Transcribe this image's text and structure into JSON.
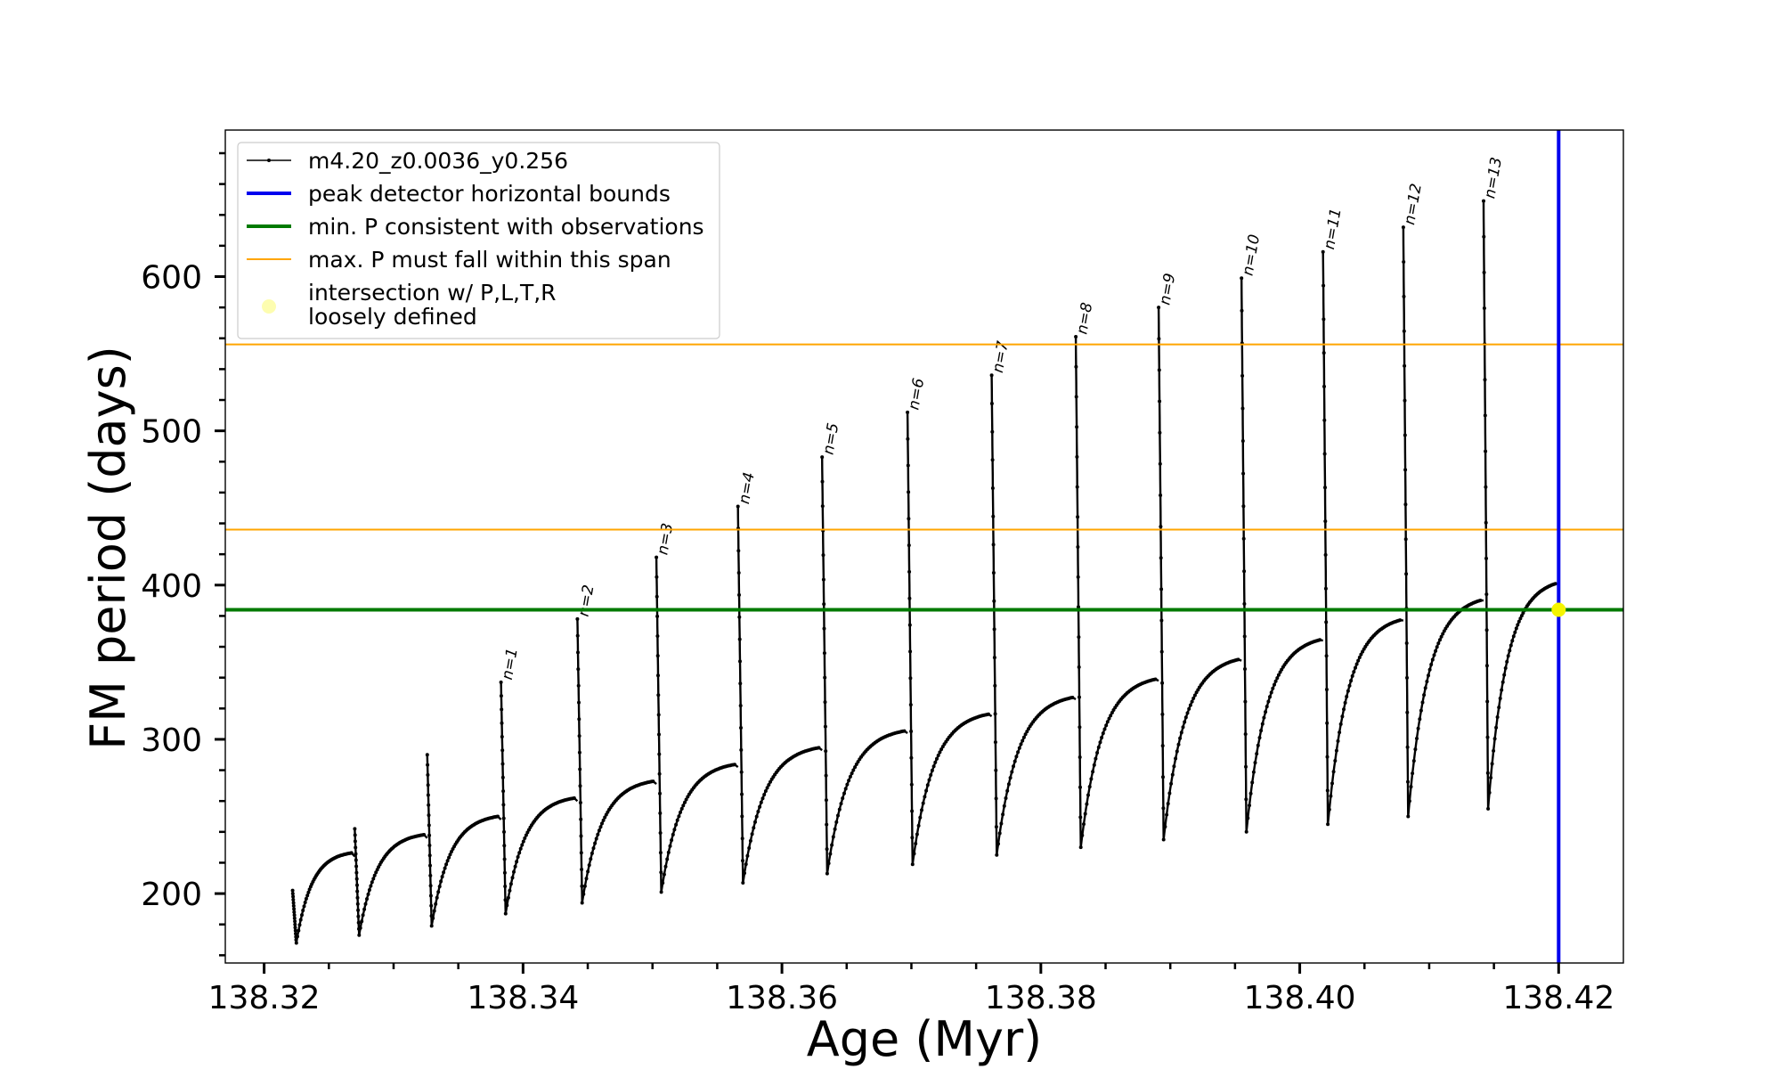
{
  "chart_data": {
    "type": "line",
    "xlabel": "Age (Myr)",
    "ylabel": "FM period (days)",
    "xlim": [
      138.317,
      138.425
    ],
    "ylim": [
      155,
      695
    ],
    "xticks_major": [
      "138.32",
      "138.34",
      "138.36",
      "138.38",
      "138.40",
      "138.42"
    ],
    "yticks_major": [
      "200",
      "300",
      "400",
      "500",
      "600"
    ],
    "series_name": "m4.20_z0.0036_y0.256",
    "cycles": [
      {
        "x0": 138.3222,
        "x_end": 138.327,
        "p_start": 202,
        "p_min": 168,
        "p_plateau": 228,
        "label": ""
      },
      {
        "x0": 138.327,
        "x_end": 138.3326,
        "p_start": 242,
        "p_min": 173,
        "p_plateau": 240,
        "label": ""
      },
      {
        "x0": 138.3326,
        "x_end": 138.3383,
        "p_start": 290,
        "p_min": 179,
        "p_plateau": 252,
        "label": ""
      },
      {
        "x0": 138.3383,
        "x_end": 138.3442,
        "p_start": 337,
        "p_min": 187,
        "p_plateau": 264,
        "label": "n=1"
      },
      {
        "x0": 138.3442,
        "x_end": 138.3503,
        "p_start": 378,
        "p_min": 194,
        "p_plateau": 275,
        "label": "n=2"
      },
      {
        "x0": 138.3503,
        "x_end": 138.3566,
        "p_start": 418,
        "p_min": 201,
        "p_plateau": 286,
        "label": "n=3"
      },
      {
        "x0": 138.3566,
        "x_end": 138.3631,
        "p_start": 451,
        "p_min": 207,
        "p_plateau": 297,
        "label": "n=4"
      },
      {
        "x0": 138.3631,
        "x_end": 138.3697,
        "p_start": 483,
        "p_min": 213,
        "p_plateau": 308,
        "label": "n=5"
      },
      {
        "x0": 138.3697,
        "x_end": 138.3762,
        "p_start": 512,
        "p_min": 219,
        "p_plateau": 319,
        "label": "n=6"
      },
      {
        "x0": 138.3762,
        "x_end": 138.3827,
        "p_start": 536,
        "p_min": 225,
        "p_plateau": 330,
        "label": "n=7"
      },
      {
        "x0": 138.3827,
        "x_end": 138.3891,
        "p_start": 561,
        "p_min": 230,
        "p_plateau": 342,
        "label": "n=8"
      },
      {
        "x0": 138.3891,
        "x_end": 138.3955,
        "p_start": 580,
        "p_min": 235,
        "p_plateau": 355,
        "label": "n=9"
      },
      {
        "x0": 138.3955,
        "x_end": 138.4018,
        "p_start": 599,
        "p_min": 240,
        "p_plateau": 368,
        "label": "n=10"
      },
      {
        "x0": 138.4018,
        "x_end": 138.408,
        "p_start": 616,
        "p_min": 245,
        "p_plateau": 381,
        "label": "n=11"
      },
      {
        "x0": 138.408,
        "x_end": 138.4142,
        "p_start": 632,
        "p_min": 250,
        "p_plateau": 394,
        "label": "n=12"
      },
      {
        "x0": 138.4142,
        "x_end": 138.42,
        "p_start": 649,
        "p_min": 255,
        "p_plateau": 405,
        "label": "n=13"
      }
    ],
    "vertical_line_x": 138.42,
    "min_period_line_y": 384,
    "max_period_span": [
      436,
      556
    ],
    "intersection_point": {
      "x": 138.42,
      "y": 384
    },
    "colors": {
      "series": "#000000",
      "peak_bounds": "#0000ee",
      "min_period": "#007a00",
      "max_span": "#ffa500",
      "intersection": "#f5f500",
      "intersection_legend": "#fdfdb0"
    },
    "legend": [
      {
        "label": "m4.20_z0.0036_y0.256",
        "icon": "line-with-dots"
      },
      {
        "label": "peak detector horizontal bounds",
        "icon": "blue-line"
      },
      {
        "label": "min. P consistent with observations",
        "icon": "green-line"
      },
      {
        "label": "max. P must fall within this span",
        "icon": "orange-line"
      },
      {
        "label": "intersection w/ P,L,T,R",
        "label2": "loosely defined",
        "icon": "yellow-dot"
      }
    ],
    "legend_position": "upper-left"
  }
}
